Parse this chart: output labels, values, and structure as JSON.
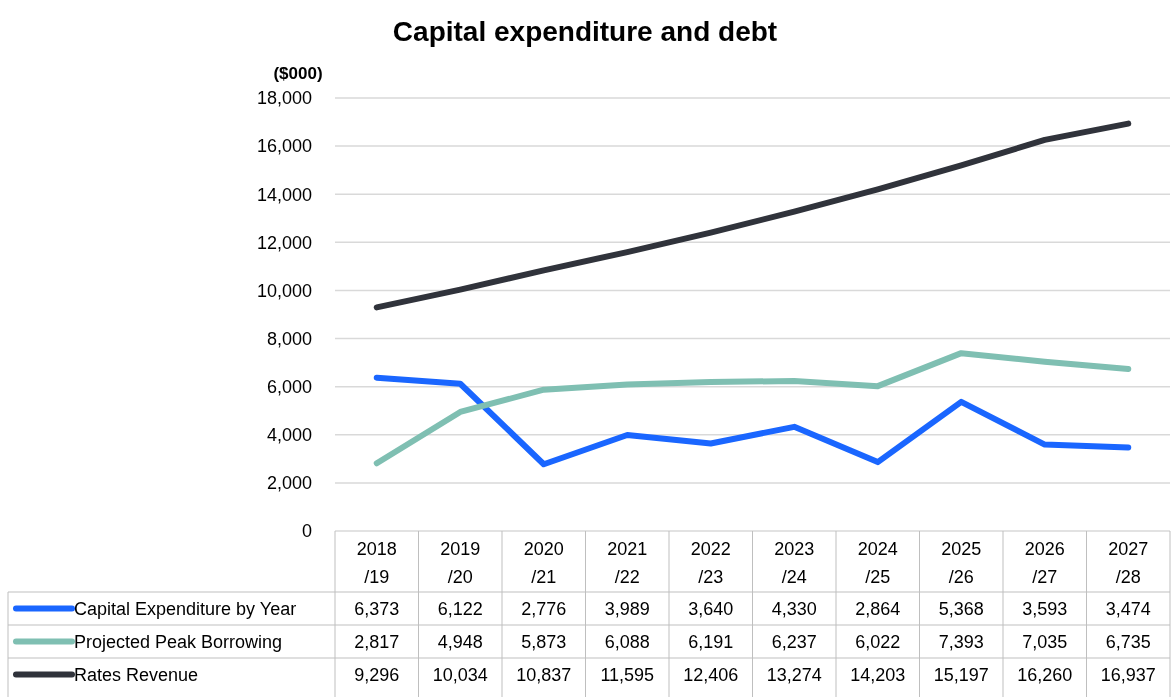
{
  "chart_data": {
    "type": "line",
    "title": "Capital expenditure and debt",
    "ylabel": "($000)",
    "categories": [
      "2018/19",
      "2019/20",
      "2020/21",
      "2021/22",
      "2022/23",
      "2023/24",
      "2024/25",
      "2025/26",
      "2026/27",
      "2027/28"
    ],
    "series": [
      {
        "name": "Capital Expenditure by Year",
        "color": "#1a66ff",
        "values": [
          6373,
          6122,
          2776,
          3989,
          3640,
          4330,
          2864,
          5368,
          3593,
          3474
        ],
        "value_labels": [
          "6,373",
          "6,122",
          "2,776",
          "3,989",
          "3,640",
          "4,330",
          "2,864",
          "5,368",
          "3,593",
          "3,474"
        ]
      },
      {
        "name": "Projected Peak Borrowing",
        "color": "#7fbfb2",
        "values": [
          2817,
          4948,
          5873,
          6088,
          6191,
          6237,
          6022,
          7393,
          7035,
          6735
        ],
        "value_labels": [
          "2,817",
          "4,948",
          "5,873",
          "6,088",
          "6,191",
          "6,237",
          "6,022",
          "7,393",
          "7,035",
          "6,735"
        ]
      },
      {
        "name": "Rates Revenue",
        "color": "#30333b",
        "values": [
          9296,
          10034,
          10837,
          11595,
          12406,
          13274,
          14203,
          15197,
          16260,
          16937
        ],
        "value_labels": [
          "9,296",
          "10,034",
          "10,837",
          "11,595",
          "12,406",
          "13,274",
          "14,203",
          "15,197",
          "16,260",
          "16,937"
        ]
      }
    ],
    "ylim": [
      0,
      18000
    ],
    "yticks": [
      {
        "value": 0,
        "label": "0"
      },
      {
        "value": 2000,
        "label": "2,000"
      },
      {
        "value": 4000,
        "label": "4,000"
      },
      {
        "value": 6000,
        "label": "6,000"
      },
      {
        "value": 8000,
        "label": "8,000"
      },
      {
        "value": 10000,
        "label": "10,000"
      },
      {
        "value": 12000,
        "label": "12,000"
      },
      {
        "value": 14000,
        "label": "14,000"
      },
      {
        "value": 16000,
        "label": "16,000"
      },
      {
        "value": 18000,
        "label": "18,000"
      }
    ],
    "grid": "y",
    "legend": "bottom",
    "marker": "none",
    "line_style": "solid"
  }
}
